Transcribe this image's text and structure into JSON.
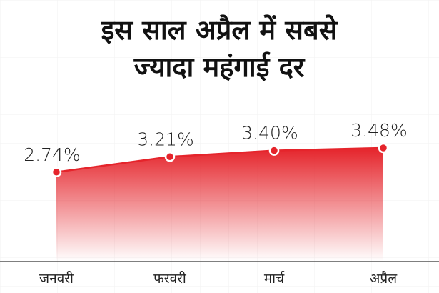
{
  "chart_data": {
    "type": "area",
    "title": [
      "इस साल अप्रैल में सबसे",
      "ज्यादा महंगाई दर"
    ],
    "categories": [
      "जनवरी",
      "फरवरी",
      "मार्च",
      "अप्रैल"
    ],
    "values": [
      2.74,
      3.21,
      3.4,
      3.48
    ],
    "value_labels": [
      "2.74%",
      "3.21%",
      "3.40%",
      "3.48%"
    ],
    "color": "#e5242b"
  }
}
